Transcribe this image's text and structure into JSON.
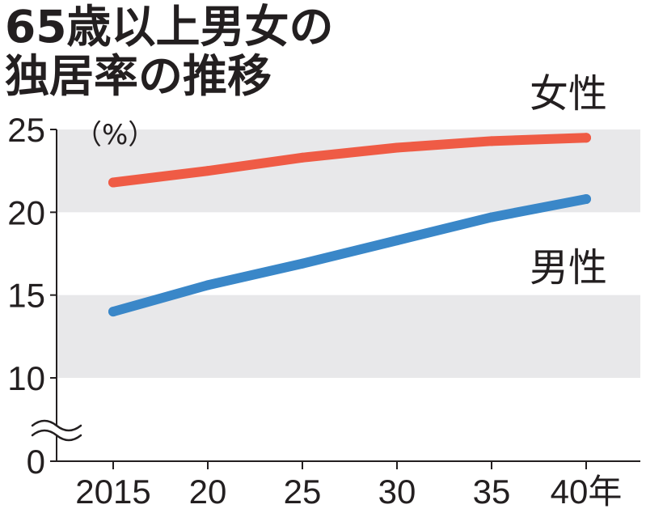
{
  "chart_data": {
    "type": "line",
    "title": [
      "65歳以上男女の",
      "独居率の推移"
    ],
    "ylabel": "（%）",
    "x": [
      2015,
      2020,
      2025,
      2030,
      2035,
      2040
    ],
    "x_tick_labels": [
      "2015",
      "20",
      "25",
      "30",
      "35",
      "40年"
    ],
    "y_ticks": [
      0,
      10,
      15,
      20,
      25
    ],
    "y_tick_labels": [
      "0",
      "10",
      "15",
      "20",
      "25"
    ],
    "ylim": [
      0,
      25
    ],
    "y_axis_break": [
      0,
      10
    ],
    "background_bands": [
      [
        20,
        25
      ],
      [
        10,
        15
      ]
    ],
    "band_color": "#e8e8ea",
    "axis_color": "#231f20",
    "series": [
      {
        "name": "女性",
        "color": "#ef5b45",
        "values": [
          21.8,
          22.5,
          23.3,
          23.9,
          24.3,
          24.5
        ]
      },
      {
        "name": "男性",
        "color": "#3a87c8",
        "values": [
          14.0,
          15.6,
          16.9,
          18.3,
          19.7,
          20.8
        ]
      }
    ]
  }
}
